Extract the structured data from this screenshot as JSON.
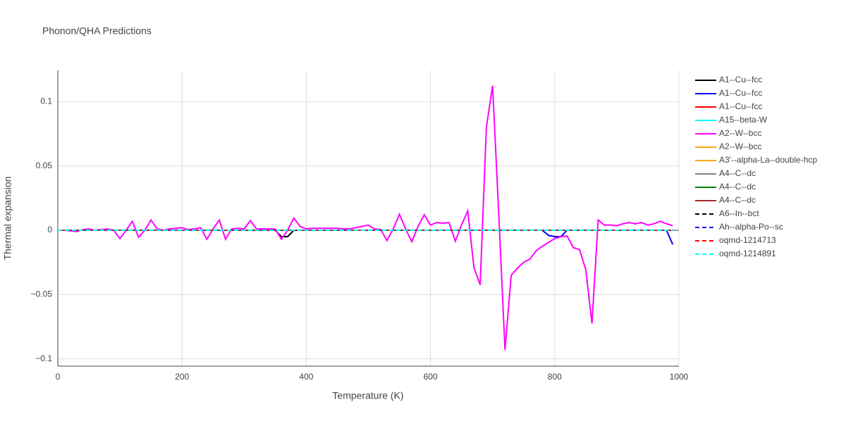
{
  "chart_data": {
    "type": "line",
    "title": "Phonon/QHA Predictions",
    "x_label": "Temperature (K)",
    "y_label": "Thermal expansion",
    "xlim": [
      0,
      1000
    ],
    "ylim": [
      -0.1057,
      0.1243
    ],
    "xticks": [
      0,
      200,
      400,
      600,
      800,
      1000
    ],
    "yticks": [
      {
        "value": -0.1,
        "label": "−0.1"
      },
      {
        "value": -0.05,
        "label": "−0.05"
      },
      0,
      0.05,
      0.1
    ],
    "grid": true,
    "legend": "right",
    "series": [
      {
        "name": "A1--Cu--fcc",
        "color": "#000000",
        "dash": false,
        "x": [
          0,
          350,
          360,
          370,
          380,
          990
        ],
        "values": [
          0,
          0,
          -0.005,
          -0.005,
          0,
          0
        ]
      },
      {
        "name": "A1--Cu--fcc",
        "color": "#0000ff",
        "dash": false,
        "x": [
          0,
          780,
          790,
          800,
          810,
          820,
          980,
          990
        ],
        "values": [
          0,
          0,
          -0.004,
          -0.005,
          -0.005,
          0,
          0,
          -0.011
        ]
      },
      {
        "name": "A1--Cu--fcc",
        "color": "#ff0000",
        "dash": false,
        "x": [
          0,
          990
        ],
        "values": [
          0,
          0
        ]
      },
      {
        "name": "A15--beta-W",
        "color": "#00ffff",
        "dash": false,
        "x": [
          0,
          990
        ],
        "values": [
          0,
          0
        ]
      },
      {
        "name": "A2--W--bcc",
        "color": "#ff00ff",
        "dash": false,
        "x": [
          0,
          10,
          20,
          30,
          40,
          50,
          60,
          70,
          80,
          90,
          100,
          110,
          120,
          130,
          140,
          150,
          160,
          170,
          180,
          190,
          200,
          210,
          220,
          230,
          240,
          250,
          260,
          270,
          280,
          290,
          300,
          310,
          320,
          330,
          340,
          350,
          360,
          370,
          380,
          390,
          400,
          410,
          420,
          430,
          440,
          450,
          460,
          470,
          480,
          490,
          500,
          510,
          520,
          530,
          540,
          550,
          560,
          570,
          580,
          590,
          600,
          610,
          620,
          630,
          640,
          650,
          660,
          670,
          680,
          690,
          700,
          710,
          720,
          730,
          740,
          750,
          760,
          770,
          780,
          790,
          800,
          810,
          820,
          830,
          840,
          850,
          860,
          870,
          880,
          890,
          900,
          910,
          920,
          930,
          940,
          950,
          960,
          970,
          980,
          990
        ],
        "values": [
          0,
          0,
          -0.0005,
          -0.001,
          0.0005,
          0.001,
          0,
          0.0005,
          0.001,
          0,
          -0.0065,
          0,
          0.007,
          -0.0055,
          0,
          0.008,
          0.001,
          0,
          0.001,
          0.0015,
          0.002,
          0.0005,
          0.001,
          0.002,
          -0.007,
          0.001,
          0.008,
          -0.007,
          0.001,
          0.0015,
          0.001,
          0.0075,
          0.001,
          0.001,
          0.001,
          0.001,
          -0.007,
          0,
          0.0095,
          0.003,
          0.001,
          0.0015,
          0.0015,
          0.0015,
          0.0015,
          0.0015,
          0.001,
          0.001,
          0.002,
          0.003,
          0.004,
          0.001,
          0.0005,
          -0.008,
          0.001,
          0.0125,
          0.001,
          -0.009,
          0.003,
          0.012,
          0.004,
          0.006,
          0.0055,
          0.006,
          -0.0085,
          0.004,
          0.015,
          -0.029,
          -0.0425,
          0.08,
          0.1125,
          0.012,
          -0.093,
          -0.035,
          -0.0295,
          -0.025,
          -0.0225,
          -0.016,
          -0.0125,
          -0.0095,
          -0.0065,
          -0.005,
          -0.0045,
          -0.0135,
          -0.015,
          -0.0305,
          -0.0725,
          0.008,
          0.004,
          0.004,
          0.0035,
          0.005,
          0.006,
          0.005,
          0.006,
          0.004,
          0.005,
          0.007,
          0.005,
          0.0035
        ]
      },
      {
        "name": "A2--W--bcc",
        "color": "#ffa500",
        "dash": false,
        "x": [
          0,
          990
        ],
        "values": [
          0,
          0
        ]
      },
      {
        "name": "A3'--alpha-La--double-hcp",
        "color": "#ffa500",
        "dash": false,
        "x": [
          0,
          990
        ],
        "values": [
          0,
          0
        ]
      },
      {
        "name": "A4--C--dc",
        "color": "#808080",
        "dash": false,
        "x": [
          0,
          990
        ],
        "values": [
          0,
          0
        ]
      },
      {
        "name": "A4--C--dc",
        "color": "#008000",
        "dash": false,
        "x": [
          0,
          990
        ],
        "values": [
          0,
          0
        ]
      },
      {
        "name": "A4--C--dc",
        "color": "#a52a2a",
        "dash": false,
        "x": [
          0,
          990
        ],
        "values": [
          0,
          0
        ]
      },
      {
        "name": "A6--In--bct",
        "color": "#000000",
        "dash": true,
        "x": [
          0,
          990
        ],
        "values": [
          0,
          0
        ]
      },
      {
        "name": "Ah--alpha-Po--sc",
        "color": "#0000ff",
        "dash": true,
        "x": [
          0,
          990
        ],
        "values": [
          0,
          0
        ]
      },
      {
        "name": "oqmd-1214713",
        "color": "#ff0000",
        "dash": true,
        "x": [
          0,
          990
        ],
        "values": [
          0,
          0
        ]
      },
      {
        "name": "oqmd-1214891",
        "color": "#00ffff",
        "dash": true,
        "x": [
          0,
          990
        ],
        "values": [
          0,
          0
        ]
      }
    ]
  }
}
